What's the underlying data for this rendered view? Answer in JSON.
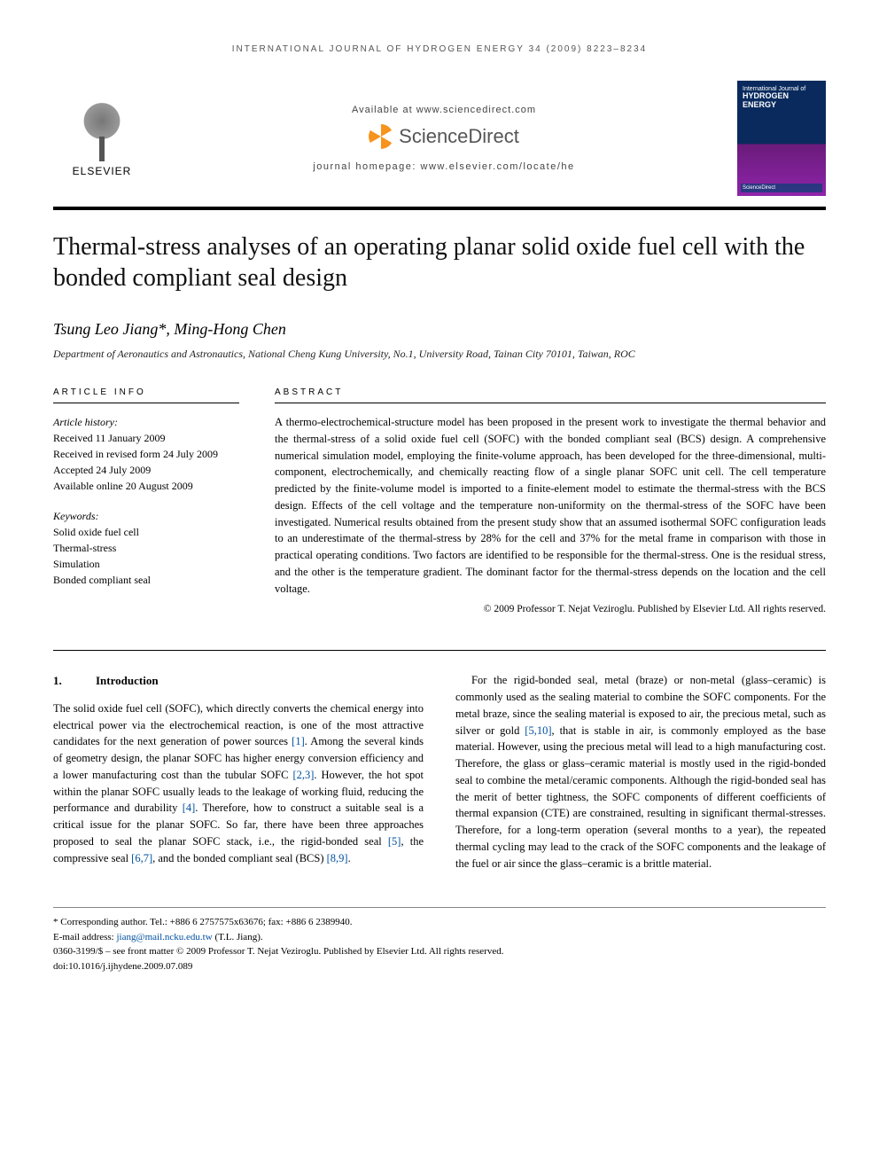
{
  "running_head": "INTERNATIONAL JOURNAL OF HYDROGEN ENERGY 34 (2009) 8223–8234",
  "header": {
    "publisher": "ELSEVIER",
    "available": "Available at www.sciencedirect.com",
    "sd_brand": "ScienceDirect",
    "homepage": "journal homepage: www.elsevier.com/locate/he",
    "cover_journal": "HYDROGEN ENERGY",
    "cover_issn_line": "International Journal of"
  },
  "title": "Thermal-stress analyses of an operating planar solid oxide fuel cell with the bonded compliant seal design",
  "authors": "Tsung Leo Jiang*, Ming-Hong Chen",
  "affiliation": "Department of Aeronautics and Astronautics, National Cheng Kung University, No.1, University Road, Tainan City 70101, Taiwan, ROC",
  "info": {
    "head": "ARTICLE INFO",
    "history_label": "Article history:",
    "received": "Received 11 January 2009",
    "revised": "Received in revised form 24 July 2009",
    "accepted": "Accepted 24 July 2009",
    "online": "Available online 20 August 2009",
    "keywords_label": "Keywords:",
    "keywords": [
      "Solid oxide fuel cell",
      "Thermal-stress",
      "Simulation",
      "Bonded compliant seal"
    ]
  },
  "abstract": {
    "head": "ABSTRACT",
    "text": "A thermo-electrochemical-structure model has been proposed in the present work to investigate the thermal behavior and the thermal-stress of a solid oxide fuel cell (SOFC) with the bonded compliant seal (BCS) design. A comprehensive numerical simulation model, employing the finite-volume approach, has been developed for the three-dimensional, multi-component, electrochemically, and chemically reacting flow of a single planar SOFC unit cell. The cell temperature predicted by the finite-volume model is imported to a finite-element model to estimate the thermal-stress with the BCS design. Effects of the cell voltage and the temperature non-uniformity on the thermal-stress of the SOFC have been investigated. Numerical results obtained from the present study show that an assumed isothermal SOFC configuration leads to an underestimate of the thermal-stress by 28% for the cell and 37% for the metal frame in comparison with those in practical operating conditions. Two factors are identified to be responsible for the thermal-stress. One is the residual stress, and the other is the temperature gradient. The dominant factor for the thermal-stress depends on the location and the cell voltage.",
    "copyright": "© 2009 Professor T. Nejat Veziroglu. Published by Elsevier Ltd. All rights reserved."
  },
  "section1": {
    "num": "1.",
    "title": "Introduction",
    "p1_a": "The solid oxide fuel cell (SOFC), which directly converts the chemical energy into electrical power via the electrochemical reaction, is one of the most attractive candidates for the next generation of power sources ",
    "c1": "[1]",
    "p1_b": ". Among the several kinds of geometry design, the planar SOFC has higher energy conversion efficiency and a lower manufacturing cost than the tubular SOFC ",
    "c2": "[2,3]",
    "p1_c": ". However, the hot spot within the planar SOFC usually leads to the leakage of working fluid, reducing the performance and durability ",
    "c3": "[4]",
    "p1_d": ". Therefore, how to construct a suitable seal is a critical issue for the planar SOFC. So far, there have been three approaches proposed to seal the planar SOFC stack, i.e., the rigid-bonded seal ",
    "c4": "[5]",
    "p1_e": ", the compressive seal ",
    "c5": "[6,7]",
    "p1_f": ", and the bonded compliant seal (BCS) ",
    "c6": "[8,9]",
    "p1_g": ".",
    "p2_a": "For the rigid-bonded seal, metal (braze) or non-metal (glass–ceramic) is commonly used as the sealing material to combine the SOFC components. For the metal braze, since the sealing material is exposed to air, the precious metal, such as silver or gold ",
    "c7": "[5,10]",
    "p2_b": ", that is stable in air, is commonly employed as the base material. However, using the precious metal will lead to a high manufacturing cost. Therefore, the glass or glass–ceramic material is mostly used in the rigid-bonded seal to combine the metal/ceramic components. Although the rigid-bonded seal has the merit of better tightness, the SOFC components of different coefficients of thermal expansion (CTE) are constrained, resulting in significant thermal-stresses. Therefore, for a long-term operation (several months to a year), the repeated thermal cycling may lead to the crack of the SOFC components and the leakage of the fuel or air since the glass–ceramic is a brittle material."
  },
  "footnotes": {
    "corresponding": "* Corresponding author. Tel.: +886 6 2757575x63676; fax: +886 6 2389940.",
    "email_label": "E-mail address: ",
    "email": "jiang@mail.ncku.edu.tw",
    "email_who": " (T.L. Jiang).",
    "issn": "0360-3199/$ – see front matter © 2009 Professor T. Nejat Veziroglu. Published by Elsevier Ltd. All rights reserved.",
    "doi": "doi:10.1016/j.ijhydene.2009.07.089"
  },
  "colors": {
    "link": "#0050a0",
    "rule": "#000000",
    "cover_top": "#0a2a5e",
    "cover_bottom": "#8e24aa",
    "sd_orange": "#f7941e"
  },
  "typography": {
    "title_fontsize": 28,
    "body_fontsize": 12.5,
    "abstract_fontsize": 12.5,
    "running_head_fontsize": 10,
    "authors_fontsize": 18
  }
}
